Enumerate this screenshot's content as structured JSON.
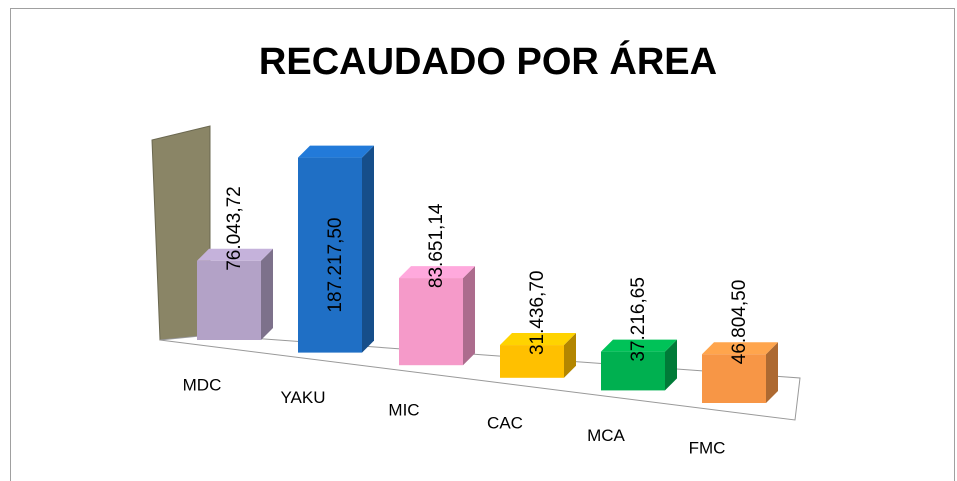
{
  "chart_data": {
    "type": "bar3d",
    "title": "RECAUDADO POR ÁREA",
    "categories": [
      "MDC",
      "YAKU",
      "MIC",
      "CAC",
      "MCA",
      "FMC"
    ],
    "values": [
      76043.72,
      187217.5,
      83651.14,
      31436.7,
      37216.65,
      46804.5
    ],
    "value_labels": [
      "76.043,72",
      "187.217,50",
      "83.651,14",
      "31.436,70",
      "37.216,65",
      "46.804,50"
    ],
    "colors": [
      "#b3a2c7",
      "#1f6fc5",
      "#f59ac9",
      "#ffc000",
      "#00b050",
      "#f79646"
    ]
  }
}
